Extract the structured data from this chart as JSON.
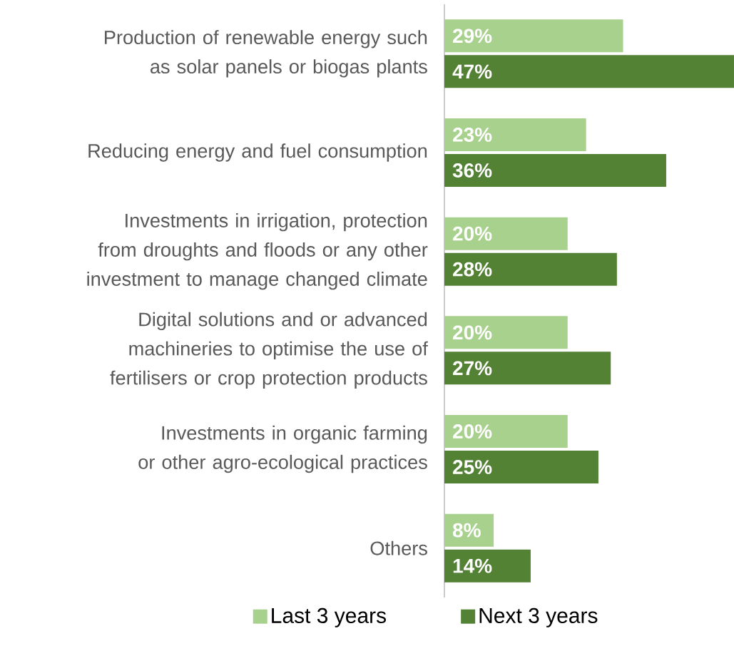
{
  "chart_data": {
    "type": "bar",
    "orientation": "horizontal",
    "categories": [
      "Production of renewable energy such as solar panels or biogas plants",
      "Reducing energy and fuel consumption",
      "Investments in irrigation, protection from droughts and floods or any other investment to manage changed climate",
      "Digital solutions and or advanced machineries to optimise the use of fertilisers or crop protection products",
      "Investments in organic farming or other agro-ecological practices",
      "Others"
    ],
    "series": [
      {
        "name": "Last 3 years",
        "color": "#a9d18e",
        "values": [
          29,
          23,
          20,
          20,
          20,
          8
        ],
        "value_labels": [
          "29%",
          "23%",
          "20%",
          "20%",
          "20%",
          "8%"
        ]
      },
      {
        "name": "Next 3 years",
        "color": "#548235",
        "values": [
          47,
          36,
          28,
          27,
          25,
          14
        ],
        "value_labels": [
          "47%",
          "36%",
          "28%",
          "27%",
          "25%",
          "14%"
        ]
      }
    ],
    "legend": "bottom"
  }
}
